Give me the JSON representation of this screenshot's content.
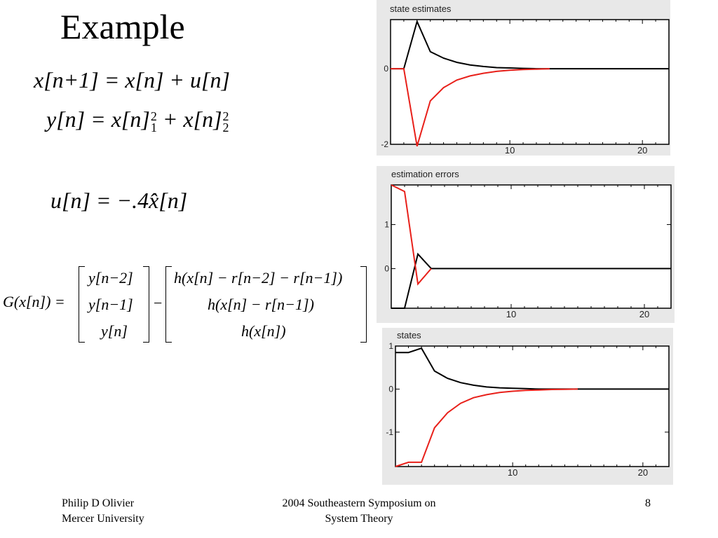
{
  "slide": {
    "title": "Example",
    "eq1": "x[n+1] = x[n] + u[n]",
    "eq2_main": "y[n] = x[n]",
    "eq2_sup1": "2",
    "eq2_sub1": "1",
    "eq2_plus": " + x[n]",
    "eq2_sup2": "2",
    "eq2_sub2": "2",
    "eq3": "u[n] = −.4x̂[n]",
    "g_lhs": "G(x[n]) =",
    "m1": [
      "y[n−2]",
      "y[n−1]",
      "y[n]"
    ],
    "minus": "−",
    "m2": [
      "h(x[n] − r[n−2] − r[n−1])",
      "h(x[n] − r[n−1])",
      "h(x[n])"
    ]
  },
  "footer": {
    "author_line1": "Philip D Olivier",
    "author_line2": "Mercer University",
    "conf_line1": "2004 Southeastern Symposium on",
    "conf_line2": "System Theory",
    "page": "8"
  },
  "colors": {
    "series_black": "#000000",
    "series_red": "#e8201a",
    "panel_bg": "#e8e8e8"
  },
  "chart_data": [
    {
      "type": "line",
      "title": "state estimates",
      "xlim": [
        1,
        22
      ],
      "ylim": [
        -2,
        1.3
      ],
      "xticks": [
        10,
        20
      ],
      "yticks": [
        0,
        -2
      ],
      "series": [
        {
          "color": "#000000",
          "x": [
            1,
            2,
            3,
            4,
            5,
            6,
            7,
            8,
            9,
            10,
            11,
            12,
            13,
            14,
            15,
            16,
            17,
            18,
            19,
            20,
            21,
            22
          ],
          "values": [
            0,
            0,
            1.25,
            0.45,
            0.28,
            0.17,
            0.1,
            0.06,
            0.03,
            0.02,
            0.01,
            0,
            0,
            0,
            0,
            0,
            0,
            0,
            0,
            0,
            0,
            0
          ]
        },
        {
          "color": "#e8201a",
          "x": [
            1,
            2,
            3,
            4,
            5,
            6,
            7,
            8,
            9,
            10,
            11,
            12,
            13
          ],
          "values": [
            0,
            0,
            -2.05,
            -0.85,
            -0.5,
            -0.3,
            -0.19,
            -0.12,
            -0.07,
            -0.04,
            -0.02,
            -0.01,
            0
          ]
        }
      ]
    },
    {
      "type": "line",
      "title": "estimation errors",
      "xlim": [
        1,
        22
      ],
      "ylim": [
        -0.9,
        1.9
      ],
      "xticks": [
        10,
        20
      ],
      "yticks": [
        1,
        0
      ],
      "series": [
        {
          "color": "#000000",
          "x": [
            1,
            2,
            3,
            4,
            5,
            6,
            7,
            8,
            9,
            10,
            11,
            12,
            13,
            14,
            15,
            16,
            17,
            18,
            19,
            20,
            21,
            22
          ],
          "values": [
            -0.9,
            -0.9,
            0.33,
            0,
            0,
            0,
            0,
            0,
            0,
            0,
            0,
            0,
            0,
            0,
            0,
            0,
            0,
            0,
            0,
            0,
            0,
            0
          ]
        },
        {
          "color": "#e8201a",
          "x": [
            1,
            2,
            3,
            4
          ],
          "values": [
            1.9,
            1.75,
            -0.35,
            0
          ]
        }
      ]
    },
    {
      "type": "line",
      "title": "states",
      "xlim": [
        1,
        22
      ],
      "ylim": [
        -1.8,
        1
      ],
      "xticks": [
        10,
        20
      ],
      "yticks": [
        1,
        0,
        -1
      ],
      "series": [
        {
          "color": "#000000",
          "x": [
            1,
            2,
            3,
            4,
            5,
            6,
            7,
            8,
            9,
            10,
            11,
            12,
            13,
            14,
            15,
            16,
            17,
            18,
            19,
            20,
            21,
            22
          ],
          "values": [
            0.85,
            0.85,
            0.95,
            0.42,
            0.25,
            0.15,
            0.09,
            0.05,
            0.03,
            0.02,
            0.01,
            0,
            0,
            0,
            0,
            0,
            0,
            0,
            0,
            0,
            0,
            0
          ]
        },
        {
          "color": "#e8201a",
          "x": [
            1,
            2,
            3,
            4,
            5,
            6,
            7,
            8,
            9,
            10,
            11,
            12,
            13,
            14,
            15
          ],
          "values": [
            -1.8,
            -1.7,
            -1.7,
            -0.9,
            -0.55,
            -0.33,
            -0.2,
            -0.13,
            -0.08,
            -0.05,
            -0.03,
            -0.02,
            -0.01,
            -0.005,
            0
          ]
        }
      ]
    }
  ]
}
